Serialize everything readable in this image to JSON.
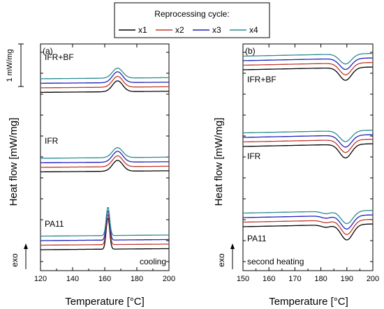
{
  "legend": {
    "title": "Reprocessing cycle:",
    "entries": [
      {
        "label": "x1",
        "color": "#000000"
      },
      {
        "label": "x2",
        "color": "#c0392b"
      },
      {
        "label": "x3",
        "color": "#1f1fbf"
      },
      {
        "label": "x4",
        "color": "#2a8c8c"
      }
    ]
  },
  "ylabel": "Heat flow [mW/mg]",
  "xlabel": "Temperature [°C]",
  "exo_label": "exo",
  "scale_bar_label": "1 mW/mg",
  "chart_data": [
    {
      "type": "line",
      "panel_label": "(a)",
      "mode_label": "cooling",
      "xlim": [
        120,
        200
      ],
      "xticks": [
        120,
        140,
        160,
        180,
        200
      ],
      "groups": [
        {
          "name": "IFR+BF",
          "peak_T": 168,
          "baselines": [
            0.02,
            0.07,
            0.12,
            0.17
          ],
          "peak_heights": [
            0.12,
            0.12,
            0.12,
            0.11
          ]
        },
        {
          "name": "IFR",
          "peak_T": 168,
          "baselines": [
            0.02,
            0.07,
            0.12,
            0.17
          ],
          "peak_heights": [
            0.12,
            0.12,
            0.12,
            0.11
          ]
        },
        {
          "name": "PA11",
          "peak_T": 162,
          "baselines": [
            0.0,
            0.05,
            0.1,
            0.15
          ],
          "peak_heights": [
            0.35,
            0.34,
            0.33,
            0.32
          ]
        }
      ]
    },
    {
      "type": "line",
      "panel_label": "(b)",
      "mode_label": "second heating",
      "xlim": [
        150,
        200
      ],
      "xticks": [
        150,
        160,
        170,
        180,
        190,
        200
      ],
      "groups": [
        {
          "name": "IFR+BF",
          "peak_T": 189.5,
          "baselines": [
            0.0,
            0.05,
            0.1,
            0.15
          ],
          "peak_depths": [
            0.14,
            0.13,
            0.12,
            0.11
          ]
        },
        {
          "name": "IFR",
          "peak_T": 189.5,
          "baselines": [
            0.0,
            0.05,
            0.1,
            0.15
          ],
          "peak_depths": [
            0.15,
            0.14,
            0.13,
            0.12
          ]
        },
        {
          "name": "PA11",
          "peak_T": 190,
          "baselines": [
            0.0,
            0.05,
            0.1,
            0.15
          ],
          "peak_depths": [
            0.17,
            0.16,
            0.15,
            0.14
          ]
        }
      ]
    }
  ]
}
